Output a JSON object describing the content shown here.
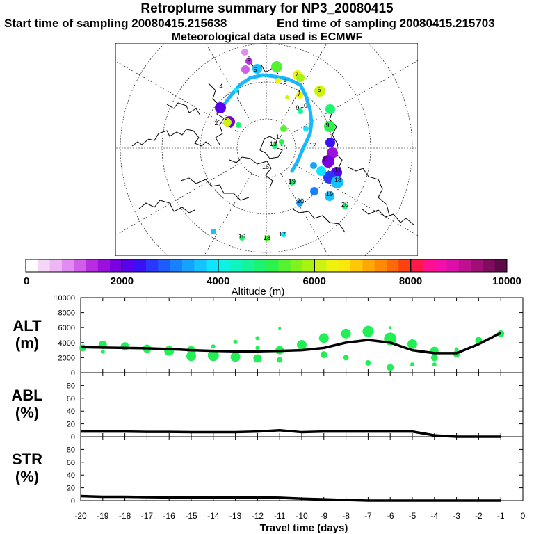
{
  "title": "Retroplume summary for NP3_20080415",
  "start_label": "Start time of sampling 20080415.215638",
  "end_label": "End time of sampling 20080415.215703",
  "met_label": "Meteorological data used is ECMWF",
  "colorbar": {
    "label": "Altitude (m)",
    "ticks": [
      "0",
      "2000",
      "4000",
      "6000",
      "8000",
      "10000"
    ],
    "colors": [
      "#ffffff",
      "#f6d6f8",
      "#edb7f5",
      "#e08cf0",
      "#cf5ee8",
      "#b72de0",
      "#9b10dc",
      "#7a00e0",
      "#5a00ea",
      "#3a10f5",
      "#2a38ff",
      "#1f5cff",
      "#1980ff",
      "#16a3ff",
      "#14c3ff",
      "#10e4ff",
      "#0ef2e6",
      "#10f5c0",
      "#14f59a",
      "#1cf373",
      "#2cf24e",
      "#55f232",
      "#80f21e",
      "#a8f214",
      "#cdf410",
      "#eef20c",
      "#fde60a",
      "#fec808",
      "#fea806",
      "#fe8a06",
      "#fe6a0a",
      "#ff4010",
      "#ff1848",
      "#ff1090",
      "#f210a8",
      "#dc10a8",
      "#c01090",
      "#a00e78",
      "#800c60",
      "#5c0a48"
    ]
  },
  "map_labels": [
    {
      "t": "1"
    },
    {
      "t": "2"
    },
    {
      "t": "3"
    },
    {
      "t": "4"
    },
    {
      "t": "5"
    },
    {
      "t": "6"
    },
    {
      "t": "6"
    },
    {
      "t": "7"
    },
    {
      "t": "7"
    },
    {
      "t": "8"
    },
    {
      "t": "9"
    },
    {
      "t": "9"
    },
    {
      "t": "10"
    },
    {
      "t": "11"
    },
    {
      "t": "12"
    },
    {
      "t": "13"
    },
    {
      "t": "14"
    },
    {
      "t": "15"
    },
    {
      "t": "16"
    },
    {
      "t": "17"
    },
    {
      "t": "17"
    },
    {
      "t": "18"
    },
    {
      "t": "18"
    },
    {
      "t": "19"
    },
    {
      "t": "19"
    },
    {
      "t": "20"
    },
    {
      "t": "20"
    },
    {
      "t": "16"
    }
  ],
  "chart_data": [
    {
      "type": "line",
      "panel": "ALT",
      "ylabel": "ALT\n(m)",
      "ylabel_lines": [
        "ALT",
        "(m)"
      ],
      "yticks": [
        "10000",
        "8000",
        "6000",
        "4000",
        "2000",
        "0"
      ],
      "ylim": [
        0,
        10000
      ],
      "xlim": [
        -20,
        0
      ],
      "x": [
        -20,
        -19,
        -18,
        -17,
        -16,
        -15,
        -14,
        -13,
        -12,
        -11,
        -10,
        -9,
        -8,
        -7,
        -6,
        -5,
        -4,
        -3,
        -2,
        -1
      ],
      "values": [
        3400,
        3350,
        3300,
        3250,
        3150,
        3000,
        2900,
        2850,
        2850,
        2900,
        3000,
        3300,
        4000,
        4350,
        4000,
        3000,
        2600,
        2600,
        3800,
        5300
      ],
      "scatter": [
        {
          "x": -19.9,
          "y": 3300,
          "r": 5
        },
        {
          "x": -19,
          "y": 3700,
          "r": 6
        },
        {
          "x": -19,
          "y": 2800,
          "r": 3
        },
        {
          "x": -18,
          "y": 3500,
          "r": 6
        },
        {
          "x": -17,
          "y": 3200,
          "r": 6
        },
        {
          "x": -16,
          "y": 2900,
          "r": 7
        },
        {
          "x": -15,
          "y": 3000,
          "r": 6
        },
        {
          "x": -15,
          "y": 2200,
          "r": 7
        },
        {
          "x": -14,
          "y": 3500,
          "r": 3
        },
        {
          "x": -14,
          "y": 2300,
          "r": 8
        },
        {
          "x": -13,
          "y": 4100,
          "r": 3
        },
        {
          "x": -13,
          "y": 2100,
          "r": 7
        },
        {
          "x": -12,
          "y": 4600,
          "r": 3
        },
        {
          "x": -12,
          "y": 3300,
          "r": 3
        },
        {
          "x": -12,
          "y": 1900,
          "r": 6
        },
        {
          "x": -11,
          "y": 5900,
          "r": 2
        },
        {
          "x": -11,
          "y": 3000,
          "r": 6
        },
        {
          "x": -11,
          "y": 1700,
          "r": 4
        },
        {
          "x": -10,
          "y": 3700,
          "r": 7
        },
        {
          "x": -9,
          "y": 4600,
          "r": 7
        },
        {
          "x": -9,
          "y": 2400,
          "r": 5
        },
        {
          "x": -8,
          "y": 5200,
          "r": 7
        },
        {
          "x": -8,
          "y": 2000,
          "r": 4
        },
        {
          "x": -7,
          "y": 5500,
          "r": 8
        },
        {
          "x": -7,
          "y": 1300,
          "r": 4
        },
        {
          "x": -6,
          "y": 4500,
          "r": 9
        },
        {
          "x": -6,
          "y": 6000,
          "r": 2
        },
        {
          "x": -6,
          "y": 700,
          "r": 5
        },
        {
          "x": -5,
          "y": 3800,
          "r": 7
        },
        {
          "x": -5,
          "y": 1100,
          "r": 3
        },
        {
          "x": -4,
          "y": 2900,
          "r": 6
        },
        {
          "x": -4,
          "y": 2000,
          "r": 5
        },
        {
          "x": -4,
          "y": 1100,
          "r": 3
        },
        {
          "x": -3,
          "y": 3100,
          "r": 3
        },
        {
          "x": -3,
          "y": 2500,
          "r": 5
        },
        {
          "x": -2,
          "y": 4300,
          "r": 5
        },
        {
          "x": -1,
          "y": 5200,
          "r": 5
        }
      ]
    },
    {
      "type": "line",
      "panel": "ABL",
      "ylabel_lines": [
        "ABL",
        "(%)"
      ],
      "yticks": [
        "80",
        "60",
        "40",
        "20",
        "0"
      ],
      "ylim": [
        0,
        100
      ],
      "xlim": [
        -20,
        0
      ],
      "x": [
        -20,
        -19,
        -18,
        -17,
        -16,
        -15,
        -14,
        -13,
        -12,
        -11,
        -10,
        -9,
        -8,
        -7,
        -6,
        -5,
        -4,
        -3,
        -2,
        -1
      ],
      "values": [
        8,
        8,
        8,
        7.5,
        7.5,
        7,
        7,
        7,
        8,
        10,
        7,
        8,
        8,
        8,
        8,
        8,
        2,
        0,
        0,
        0
      ]
    },
    {
      "type": "line",
      "panel": "STR",
      "ylabel_lines": [
        "STR",
        "(%)"
      ],
      "yticks": [
        "80",
        "60",
        "40",
        "20",
        "0"
      ],
      "ylim": [
        0,
        100
      ],
      "xlim": [
        -20,
        0
      ],
      "x": [
        -20,
        -19,
        -18,
        -17,
        -16,
        -15,
        -14,
        -13,
        -12,
        -11,
        -10,
        -9,
        -8,
        -7,
        -6,
        -5,
        -4,
        -3,
        -2,
        -1
      ],
      "values": [
        7,
        6,
        6,
        5.5,
        5,
        5,
        5,
        5,
        5,
        4.5,
        3,
        2,
        1,
        0,
        0,
        0,
        0,
        0,
        0,
        0
      ]
    }
  ],
  "xticks": [
    "-20",
    "-19",
    "-18",
    "-17",
    "-16",
    "-15",
    "-14",
    "-13",
    "-12",
    "-11",
    "-10",
    "-9",
    "-8",
    "-7",
    "-6",
    "-5",
    "-4",
    "-3",
    "-2",
    "-1",
    "0"
  ],
  "xlabel": "Travel time (days)"
}
